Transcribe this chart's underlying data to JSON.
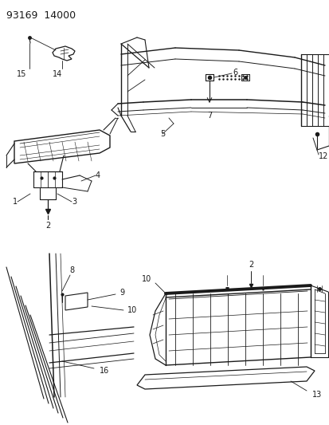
{
  "title": "93169  14000",
  "bg_color": "#ffffff",
  "line_color": "#1a1a1a",
  "fig_width": 4.14,
  "fig_height": 5.33,
  "dpi": 100,
  "title_fontsize": 9,
  "label_fontsize": 7
}
